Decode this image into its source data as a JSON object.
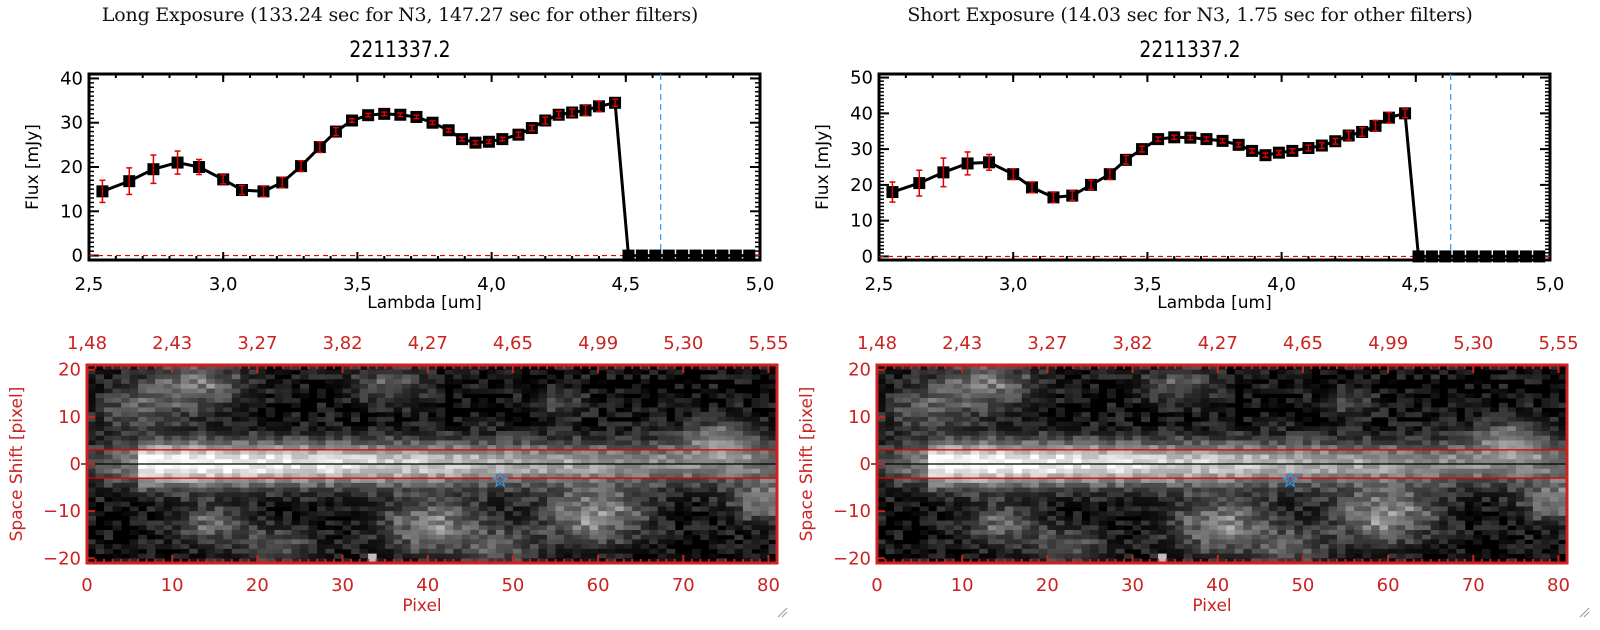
{
  "panels": [
    {
      "exposure_title": "Long Exposure (133.24 sec for N3, 147.27 sec for other filters)",
      "object_title": "2211337.2"
    },
    {
      "exposure_title": "Short Exposure (14.03 sec for N3, 1.75 sec for other filters)",
      "object_title": "2211337.2"
    }
  ],
  "colors": {
    "line": "#000000",
    "error_bar": "#e00000",
    "reference_line": "#3399ee",
    "zero_dashed": "#e00000",
    "image_axis": "#cc2222",
    "aperture_lines": "#dd0000",
    "star_marker": "#3399ee"
  },
  "chart_data": [
    {
      "type": "line",
      "title": "2211337.2",
      "subtitle": "Long Exposure (133.24 sec for N3, 147.27 sec for other filters)",
      "xlabel": "Lambda [um]",
      "ylabel": "Flux [mJy]",
      "xlim": [
        2.5,
        5.0
      ],
      "ylim": [
        -1,
        41
      ],
      "xticks": [
        "2.5",
        "3.0",
        "3.5",
        "4.0",
        "4.5",
        "5.0"
      ],
      "yticks": [
        "0",
        "10",
        "20",
        "30",
        "40"
      ],
      "reference_x": 4.63,
      "series": [
        {
          "name": "flux",
          "x": [
            2.55,
            2.65,
            2.74,
            2.83,
            2.91,
            3.0,
            3.07,
            3.15,
            3.22,
            3.29,
            3.36,
            3.42,
            3.48,
            3.54,
            3.6,
            3.66,
            3.72,
            3.78,
            3.84,
            3.89,
            3.94,
            3.99,
            4.04,
            4.1,
            4.15,
            4.2,
            4.25,
            4.3,
            4.35,
            4.4,
            4.46,
            4.51,
            4.56,
            4.61,
            4.66,
            4.71,
            4.76,
            4.81,
            4.86,
            4.91,
            4.96
          ],
          "y": [
            14.5,
            16.8,
            19.5,
            21.0,
            20.0,
            17.2,
            14.8,
            14.5,
            16.5,
            20.2,
            24.5,
            28.0,
            30.5,
            31.7,
            32.0,
            31.8,
            31.3,
            30.0,
            28.3,
            26.3,
            25.5,
            25.7,
            26.3,
            27.3,
            28.8,
            30.5,
            31.8,
            32.3,
            32.8,
            33.7,
            34.5,
            0,
            0,
            0,
            0,
            0,
            0,
            0,
            0,
            0,
            0
          ],
          "yerr": [
            2.5,
            3.0,
            3.2,
            2.6,
            1.7,
            1.0,
            1.0,
            1.2,
            1.2,
            1.2,
            1.2,
            0.9,
            0.4,
            0.4,
            0.4,
            0.4,
            0.4,
            0.4,
            0.4,
            0.4,
            0.4,
            0.4,
            0.4,
            0.6,
            0.6,
            0.8,
            0.8,
            0.8,
            1.2,
            1.2,
            0.8,
            0,
            0,
            0,
            0,
            0,
            0,
            0,
            0,
            0,
            0
          ]
        }
      ]
    },
    {
      "type": "heatmap",
      "xlabel": "Pixel",
      "ylabel": "Space Shift [pixel]",
      "xlim": [
        0,
        81
      ],
      "ylim": [
        -21,
        21
      ],
      "xticks": [
        "0",
        "10",
        "20",
        "30",
        "40",
        "50",
        "60",
        "70",
        "80"
      ],
      "yticks": [
        "-20",
        "-10",
        "0",
        "10",
        "20"
      ],
      "top_xticks": [
        "1.48",
        "2.43",
        "3.27",
        "3.82",
        "4.27",
        "4.65",
        "4.99",
        "5.30",
        "5.55"
      ],
      "aperture_lines_y": [
        3,
        -3
      ],
      "center_line_y": 0,
      "star_marker": {
        "x": 48.5,
        "y": -3.5
      },
      "colormap": "grayscale"
    },
    {
      "type": "line",
      "title": "2211337.2",
      "subtitle": "Short Exposure (14.03 sec for N3, 1.75 sec for other filters)",
      "xlabel": "Lambda [um]",
      "ylabel": "Flux [mJy]",
      "xlim": [
        2.5,
        5.0
      ],
      "ylim": [
        -1,
        51
      ],
      "xticks": [
        "2.5",
        "3.0",
        "3.5",
        "4.0",
        "4.5",
        "5.0"
      ],
      "yticks": [
        "0",
        "10",
        "20",
        "30",
        "40",
        "50"
      ],
      "reference_x": 4.63,
      "series": [
        {
          "name": "flux",
          "x": [
            2.55,
            2.65,
            2.74,
            2.83,
            2.91,
            3.0,
            3.07,
            3.15,
            3.22,
            3.29,
            3.36,
            3.42,
            3.48,
            3.54,
            3.6,
            3.66,
            3.72,
            3.78,
            3.84,
            3.89,
            3.94,
            3.99,
            4.04,
            4.1,
            4.15,
            4.2,
            4.25,
            4.3,
            4.35,
            4.4,
            4.46,
            4.51,
            4.56,
            4.61,
            4.66,
            4.71,
            4.76,
            4.81,
            4.86,
            4.91,
            4.96
          ],
          "y": [
            18.0,
            20.5,
            23.5,
            26.0,
            26.3,
            23.0,
            19.3,
            16.5,
            17.0,
            20.0,
            23.0,
            27.0,
            30.0,
            32.8,
            33.3,
            33.2,
            32.8,
            32.3,
            31.2,
            29.5,
            28.3,
            29.0,
            29.5,
            30.3,
            31.0,
            32.2,
            33.8,
            34.8,
            36.5,
            38.8,
            40.0,
            0,
            0,
            0,
            0,
            0,
            0,
            0,
            0,
            0,
            0
          ],
          "yerr": [
            2.8,
            3.6,
            4.0,
            3.2,
            2.2,
            1.5,
            1.5,
            1.5,
            1.3,
            1.3,
            1.5,
            1.2,
            0.8,
            0.6,
            0.6,
            0.6,
            0.6,
            0.6,
            0.6,
            0.6,
            0.6,
            0.6,
            0.6,
            0.8,
            0.8,
            0.8,
            1.2,
            1.2,
            1.5,
            1.5,
            1.2,
            0,
            0,
            0,
            0,
            0,
            0,
            0,
            0,
            0,
            0
          ]
        }
      ]
    },
    {
      "type": "heatmap",
      "xlabel": "Pixel",
      "ylabel": "Space Shift [pixel]",
      "xlim": [
        0,
        81
      ],
      "ylim": [
        -21,
        21
      ],
      "xticks": [
        "0",
        "10",
        "20",
        "30",
        "40",
        "50",
        "60",
        "70",
        "80"
      ],
      "yticks": [
        "-20",
        "-10",
        "0",
        "10",
        "20"
      ],
      "top_xticks": [
        "1.48",
        "2.43",
        "3.27",
        "3.82",
        "4.27",
        "4.65",
        "4.99",
        "5.30",
        "5.55"
      ],
      "aperture_lines_y": [
        3,
        -3
      ],
      "center_line_y": 0,
      "star_marker": {
        "x": 48.5,
        "y": -3.5
      },
      "colormap": "grayscale"
    }
  ]
}
